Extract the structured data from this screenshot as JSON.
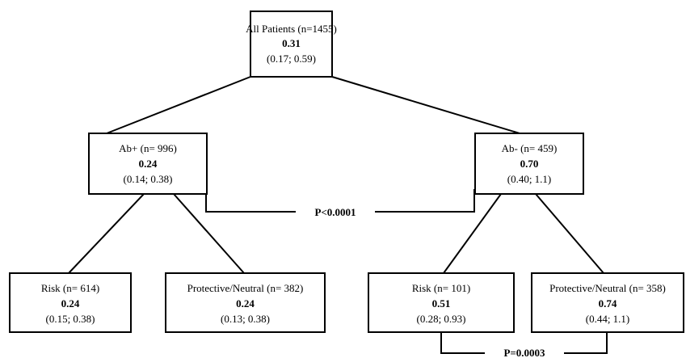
{
  "nodes": {
    "root": {
      "label": "All Patients (n=1455)",
      "estimate": "0.31",
      "ci": "(0.17; 0.59)"
    },
    "ab_pos": {
      "label": "Ab+ (n= 996)",
      "estimate": "0.24",
      "ci": "(0.14; 0.38)"
    },
    "ab_neg": {
      "label": "Ab- (n= 459)",
      "estimate": "0.70",
      "ci": "(0.40; 1.1)"
    },
    "ab_pos_risk": {
      "label": "Risk (n= 614)",
      "estimate": "0.24",
      "ci": "(0.15; 0.38)"
    },
    "ab_pos_protect": {
      "label": "Protective/Neutral (n= 382)",
      "estimate": "0.24",
      "ci": "(0.13; 0.38)"
    },
    "ab_neg_risk": {
      "label": "Risk (n= 101)",
      "estimate": "0.51",
      "ci": "(0.28; 0.93)"
    },
    "ab_neg_protect": {
      "label": "Protective/Neutral (n= 358)",
      "estimate": "0.74",
      "ci": "(0.44; 1.1)"
    }
  },
  "comparisons": {
    "ab_pos_vs_ab_neg": "P<0.0001",
    "ab_neg_risk_vs_protect": "P=0.0003"
  }
}
